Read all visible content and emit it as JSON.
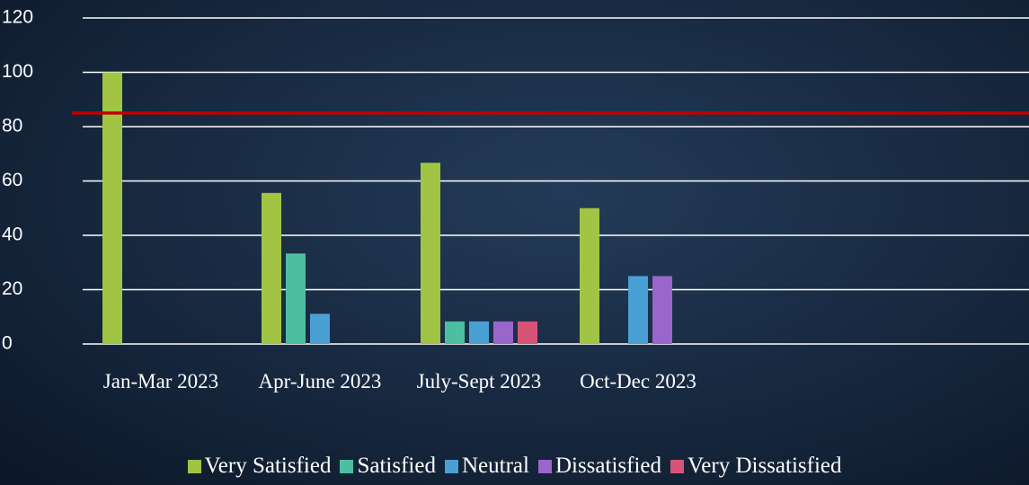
{
  "chart_data": {
    "type": "bar",
    "categories": [
      "Jan-Mar 2023",
      "Apr-June 2023",
      "July-Sept 2023",
      "Oct-Dec 2023"
    ],
    "series": [
      {
        "name": "Very Satisfied",
        "color": "#a2c444",
        "values": [
          100,
          55.6,
          66.7,
          50
        ]
      },
      {
        "name": "Satisfied",
        "color": "#4dbfa1",
        "values": [
          0,
          33.3,
          8.3,
          0
        ]
      },
      {
        "name": "Neutral",
        "color": "#4aa0d4",
        "values": [
          0,
          11.1,
          8.3,
          25
        ]
      },
      {
        "name": "Dissatisfied",
        "color": "#9966cc",
        "values": [
          0,
          0,
          8.3,
          25
        ]
      },
      {
        "name": "Very Dissatisfied",
        "color": "#d65577",
        "values": [
          0,
          0,
          8.3,
          0
        ]
      }
    ],
    "target_line": {
      "value": 85,
      "color": "#c00000"
    },
    "ylim": [
      0,
      120
    ],
    "yticks": [
      0,
      20,
      40,
      60,
      80,
      100,
      120
    ],
    "grid": true,
    "legend": "bottom"
  }
}
